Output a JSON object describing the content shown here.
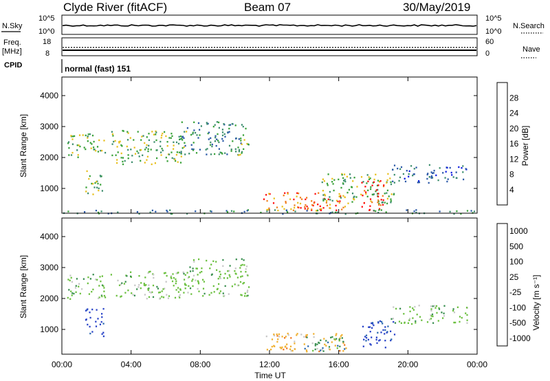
{
  "header": {
    "station": "Clyde River (fitACF)",
    "beam": "Beam 07",
    "date": "30/May/2019"
  },
  "top_panels": {
    "nsky_label": "N.Sky",
    "nsearch_label": "N.Search",
    "nsky_ticks": [
      "10^5",
      "10^0"
    ],
    "nsearch_ticks": [
      "10^5",
      "10^0"
    ],
    "freq_label": "Freq.",
    "freq_unit": "[MHz]",
    "freq_ticks": [
      "18",
      "8"
    ],
    "nave_label": "Nave",
    "nave_ticks": [
      "60",
      "0"
    ],
    "cpid_label": "CPID",
    "cpid_value": "normal (fast) 151"
  },
  "chart_data": [
    {
      "type": "heatmap",
      "name": "power",
      "ylabel": "Slant Range [km]",
      "yticks": [
        "1000",
        "2000",
        "3000",
        "4000"
      ],
      "ylim": [
        200,
        4600
      ],
      "colorbar": {
        "label": "Power [dB]",
        "ticks": [
          "4",
          "8",
          "12",
          "16",
          "20",
          "24",
          "28"
        ],
        "range": [
          0,
          32
        ],
        "colors": [
          "#1020e0",
          "#2c5aa8",
          "#3f8f6f",
          "#3aa23a",
          "#e8c020",
          "#f08020",
          "#ff1010"
        ]
      },
      "regions": [
        {
          "t0": 0.3,
          "t1": 2.5,
          "r0": 2000,
          "r1": 2800,
          "level": 3
        },
        {
          "t0": 1.3,
          "t1": 2.4,
          "r0": 800,
          "r1": 1600,
          "level": 3
        },
        {
          "t0": 2.8,
          "t1": 7.2,
          "r0": 1800,
          "r1": 2900,
          "level": 3
        },
        {
          "t0": 6.8,
          "t1": 10.6,
          "r0": 2100,
          "r1": 3200,
          "level": 2
        },
        {
          "t0": 10.0,
          "t1": 10.8,
          "r0": 2100,
          "r1": 2700,
          "level": 3
        },
        {
          "t0": 11.6,
          "t1": 16.5,
          "r0": 300,
          "r1": 900,
          "level": 5
        },
        {
          "t0": 14.0,
          "t1": 15.1,
          "r0": 300,
          "r1": 700,
          "level": 6
        },
        {
          "t0": 15.0,
          "t1": 19.2,
          "r0": 500,
          "r1": 1500,
          "level": 3
        },
        {
          "t0": 17.3,
          "t1": 18.6,
          "r0": 300,
          "r1": 1300,
          "level": 6
        },
        {
          "t0": 19.0,
          "t1": 23.4,
          "r0": 1200,
          "r1": 1800,
          "level": 1
        },
        {
          "t0": 0.0,
          "t1": 24.0,
          "r0": 200,
          "r1": 330,
          "level": 2
        }
      ]
    },
    {
      "type": "heatmap",
      "name": "velocity",
      "ylabel": "Slant Range [km]",
      "yticks": [
        "1000",
        "2000",
        "3000",
        "4000"
      ],
      "ylim": [
        200,
        4600
      ],
      "colorbar": {
        "label": "Velocity [m s⁻¹]",
        "ticks": [
          "1000",
          "500",
          "100",
          "25",
          "-25",
          "-100",
          "-500",
          "-1000"
        ],
        "colors": [
          "#2a44c8",
          "#2c6ab0",
          "#3a8f50",
          "#6cc040",
          "#c8c8c8",
          "#f0b030",
          "#f07820",
          "#f02010"
        ]
      },
      "regions": [
        {
          "t0": 0.3,
          "t1": 2.5,
          "r0": 2000,
          "r1": 2800,
          "v": "25"
        },
        {
          "t0": 1.3,
          "t1": 2.4,
          "r0": 800,
          "r1": 1700,
          "v": "1000"
        },
        {
          "t0": 2.8,
          "t1": 7.2,
          "r0": 2000,
          "r1": 2900,
          "v": "25"
        },
        {
          "t0": 7.2,
          "t1": 10.8,
          "r0": 2100,
          "r1": 3300,
          "v": "25"
        },
        {
          "t0": 11.6,
          "t1": 16.5,
          "r0": 300,
          "r1": 900,
          "v": "-100"
        },
        {
          "t0": 14.0,
          "t1": 16.3,
          "r0": 300,
          "r1": 800,
          "v": "100"
        },
        {
          "t0": 17.3,
          "t1": 19.3,
          "r0": 400,
          "r1": 1300,
          "v": "1000"
        },
        {
          "t0": 19.0,
          "t1": 23.4,
          "r0": 1200,
          "r1": 1800,
          "v": "25"
        }
      ]
    }
  ],
  "x_axis": {
    "label": "Time UT",
    "ticks": [
      "00:00",
      "04:00",
      "08:00",
      "12:00",
      "16:00",
      "20:00",
      "00:00"
    ],
    "range_hours": [
      0,
      24
    ]
  }
}
